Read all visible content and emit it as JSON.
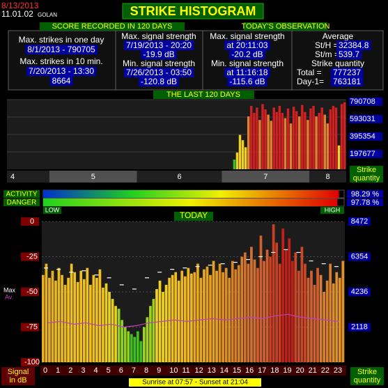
{
  "header": {
    "date": "8/13/2013",
    "version": "11.01.02",
    "location": "GOLAN",
    "title": "STRIKE HISTOGRAM"
  },
  "score": {
    "heading": "SCORE RECORDED IN 120 DAYS",
    "max_day_label": "Max. strikes in one day",
    "max_day_value": "8/1/2013 - 790705",
    "max_10min_label": "Max. strikes in 10 min.",
    "max_10min_time": "7/20/2013 - 13:30",
    "max_10min_value": "8664",
    "max_signal_label": "Max. signal strength",
    "max_signal_time": "7/19/2013 - 20:20",
    "max_signal_value": "-19.9 dB",
    "min_signal_label": "Min. signal strength",
    "min_signal_time": "7/26/2013 - 03:50",
    "min_signal_value": "-120.8 dB"
  },
  "observation": {
    "heading": "TODAY'S OBSERVATION",
    "max_signal_label": "Max. signal strength",
    "max_signal_time": "at 20:11:03",
    "max_signal_value": "-20.2 dB",
    "min_signal_label": "Min. signal strength",
    "min_signal_time": "at 11:16:18",
    "min_signal_value": "-115.6 dB",
    "average_label": "Average",
    "sth_label": "St/H =",
    "sth_value": "32384.8",
    "stm_label": "St/m =",
    "stm_value": "539.7",
    "quantity_label": "Strike quantity",
    "total_label": "Total =",
    "total_value": "777237",
    "day1_label": "Day-1=",
    "day1_value": "763181"
  },
  "last120": {
    "heading": "THE LAST 120 DAYS",
    "months": [
      "4",
      "5",
      "6",
      "7",
      "8"
    ],
    "axis_label_1": "Strike",
    "axis_label_2": "quantity",
    "ylim": [
      0,
      790708
    ],
    "yticks": [
      197677,
      395354,
      593031,
      790708
    ],
    "palette": [
      "#30c030",
      "#f0d020",
      "#e08030",
      "#d02020"
    ],
    "values": [
      0,
      0,
      0,
      0,
      0,
      0,
      0,
      0,
      0,
      0,
      0,
      0,
      0,
      0,
      0,
      0,
      0,
      0,
      0,
      0,
      0,
      0,
      0,
      0,
      0,
      0,
      0,
      0,
      0,
      0,
      0,
      0,
      0,
      0,
      0,
      0,
      0,
      0,
      0,
      0,
      0,
      0,
      0,
      0,
      0,
      0,
      0,
      0,
      0,
      0,
      0,
      0,
      0,
      0,
      0,
      0,
      0,
      0,
      0,
      0,
      0,
      0,
      0,
      0,
      0,
      0,
      0,
      0,
      0,
      0,
      0,
      0,
      0,
      0,
      0,
      0,
      0,
      0,
      0,
      0,
      110000,
      190000,
      390000,
      330000,
      250000,
      600000,
      720000,
      640000,
      700000,
      560000,
      740000,
      680000,
      620000,
      550000,
      700000,
      650000,
      720000,
      640000,
      580000,
      690000,
      520000,
      710000,
      660000,
      600000,
      730000,
      650000,
      560000,
      690000,
      720000,
      600000,
      640000,
      700000,
      620000,
      520000,
      680000,
      720000,
      700000,
      270000,
      740000,
      760000
    ]
  },
  "meters": {
    "activity_label": "ACTIVITY",
    "activity": 98.29,
    "activity_label_value": "98.29 %",
    "danger_label": "DANGER",
    "danger": 97.78,
    "danger_label_value": "97.78 %",
    "low": "LOW",
    "high": "HIGH"
  },
  "today": {
    "heading": "TODAY",
    "max_label": "Max",
    "avg_label": "Av.",
    "ylim": [
      -100,
      0
    ],
    "yticks": [
      0,
      -25,
      -50,
      -75,
      -100
    ],
    "y2lim": [
      0,
      8472
    ],
    "y2ticks": [
      8472,
      6354,
      4236,
      2118
    ],
    "hours": [
      "0",
      "1",
      "2",
      "3",
      "4",
      "5",
      "6",
      "7",
      "8",
      "9",
      "10",
      "11",
      "12",
      "13",
      "14",
      "15",
      "16",
      "17",
      "18",
      "19",
      "20",
      "21",
      "22",
      "23"
    ],
    "hour_colors": [
      "#e8b020",
      "#e8b820",
      "#f0c020",
      "#f0c020",
      "#f0c020",
      "#e8d020",
      "#90d020",
      "#40c020",
      "#a0d020",
      "#f0d020",
      "#f0c020",
      "#f0b820",
      "#e8a820",
      "#e8a020",
      "#e09020",
      "#d88028",
      "#d07030",
      "#d06030",
      "#c84020",
      "#c02018",
      "#c84828",
      "#d06030",
      "#d88030",
      "#e09028"
    ],
    "values": [
      -38,
      -30,
      -40,
      -35,
      -42,
      -33,
      -38,
      -45,
      -40,
      -30,
      -36,
      -43,
      -35,
      -41,
      -33,
      -45,
      -38,
      -40,
      -34,
      -47,
      -44,
      -50,
      -55,
      -60,
      -62,
      -70,
      -75,
      -78,
      -80,
      -82,
      -78,
      -85,
      -75,
      -68,
      -60,
      -55,
      -48,
      -42,
      -50,
      -45,
      -40,
      -38,
      -36,
      -42,
      -35,
      -39,
      -33,
      -37,
      -36,
      -30,
      -40,
      -34,
      -32,
      -38,
      -28,
      -35,
      -30,
      -36,
      -33,
      -40,
      -28,
      -34,
      -31,
      -25,
      -22,
      -30,
      -18,
      -27,
      -33,
      -10,
      -28,
      -20,
      -25,
      -2,
      -15,
      -30,
      -5,
      -20,
      -12,
      -28,
      -22,
      -35,
      -18,
      -30,
      -40,
      -35,
      -45,
      -33,
      -38,
      -50,
      -42,
      -30,
      -44,
      -36,
      -40,
      -28
    ],
    "max_markers": [
      -33,
      -34,
      -36,
      -35,
      -38,
      -40,
      -45,
      -48,
      -40,
      -36,
      -34,
      -33,
      -32,
      -31,
      -30,
      -29,
      -27,
      -25,
      -22,
      -20,
      -22,
      -28,
      -30,
      -32
    ],
    "average": [
      -72,
      -71,
      -73,
      -72,
      -74,
      -73,
      -75,
      -74,
      -72,
      -71,
      -70,
      -71,
      -70,
      -69,
      -70,
      -69,
      -68,
      -69,
      -67,
      -66,
      -68,
      -69,
      -70,
      -71
    ],
    "left_label_1": "Signal",
    "left_label_2": "in dB",
    "right_label_1": "Strike",
    "right_label_2": "quantity",
    "sun": "Sunrise at 07:57  -  Sunset at 21:04"
  }
}
